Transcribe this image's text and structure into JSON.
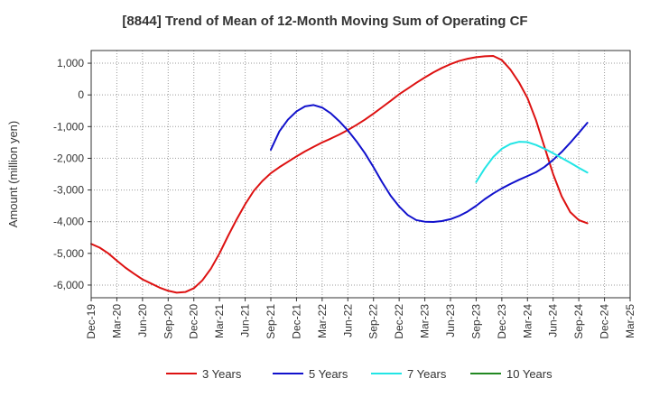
{
  "chart_data": {
    "type": "line",
    "title": "[8844]  Trend of Mean of 12-Month Moving Sum of Operating CF",
    "xlabel": "",
    "ylabel": "Amount (million yen)",
    "ylim": [
      -6400,
      1400
    ],
    "y_ticks": [
      1000,
      0,
      -1000,
      -2000,
      -3000,
      -4000,
      -5000,
      -6000
    ],
    "y_tick_labels": [
      "1,000",
      "0",
      "-1,000",
      "-2,000",
      "-3,000",
      "-4,000",
      "-5,000",
      "-6,000"
    ],
    "x_tick_labels": [
      "Dec-19",
      "Mar-20",
      "Jun-20",
      "Sep-20",
      "Dec-20",
      "Mar-21",
      "Jun-21",
      "Sep-21",
      "Dec-21",
      "Mar-22",
      "Jun-22",
      "Sep-22",
      "Dec-22",
      "Mar-23",
      "Jun-23",
      "Sep-23",
      "Dec-23",
      "Mar-24",
      "Jun-24",
      "Sep-24",
      "Dec-24",
      "Mar-25"
    ],
    "x_start": "Dec-19",
    "x_step": "1 month",
    "grid": true,
    "legend_position": "bottom",
    "series": [
      {
        "name": "3 Years",
        "color": "#dd1111",
        "start_index": 0,
        "values": [
          -4700,
          -4820,
          -5000,
          -5230,
          -5450,
          -5640,
          -5820,
          -5950,
          -6080,
          -6180,
          -6240,
          -6220,
          -6100,
          -5850,
          -5480,
          -5000,
          -4450,
          -3930,
          -3450,
          -3030,
          -2720,
          -2470,
          -2280,
          -2110,
          -1940,
          -1780,
          -1640,
          -1500,
          -1380,
          -1250,
          -1110,
          -950,
          -780,
          -590,
          -390,
          -190,
          20,
          200,
          380,
          550,
          710,
          850,
          970,
          1070,
          1140,
          1190,
          1220,
          1230,
          1100,
          800,
          400,
          -100,
          -800,
          -1650,
          -2500,
          -3200,
          -3700,
          -3950,
          -4050
        ]
      },
      {
        "name": "5 Years",
        "color": "#1111cc",
        "start_index": 21,
        "values": [
          -1730,
          -1150,
          -780,
          -520,
          -360,
          -320,
          -400,
          -580,
          -830,
          -1120,
          -1460,
          -1840,
          -2280,
          -2750,
          -3180,
          -3520,
          -3790,
          -3950,
          -4000,
          -4010,
          -3980,
          -3920,
          -3820,
          -3680,
          -3500,
          -3290,
          -3110,
          -2950,
          -2810,
          -2680,
          -2560,
          -2440,
          -2270,
          -2050,
          -1800,
          -1510,
          -1200,
          -880
        ]
      },
      {
        "name": "7 Years",
        "color": "#22e5e5",
        "start_index": 45,
        "values": [
          -2750,
          -2320,
          -1960,
          -1700,
          -1550,
          -1480,
          -1490,
          -1580,
          -1700,
          -1840,
          -1990,
          -2140,
          -2300,
          -2450
        ]
      },
      {
        "name": "10 Years",
        "color": "#228822",
        "start_index": 0,
        "values": []
      }
    ]
  }
}
